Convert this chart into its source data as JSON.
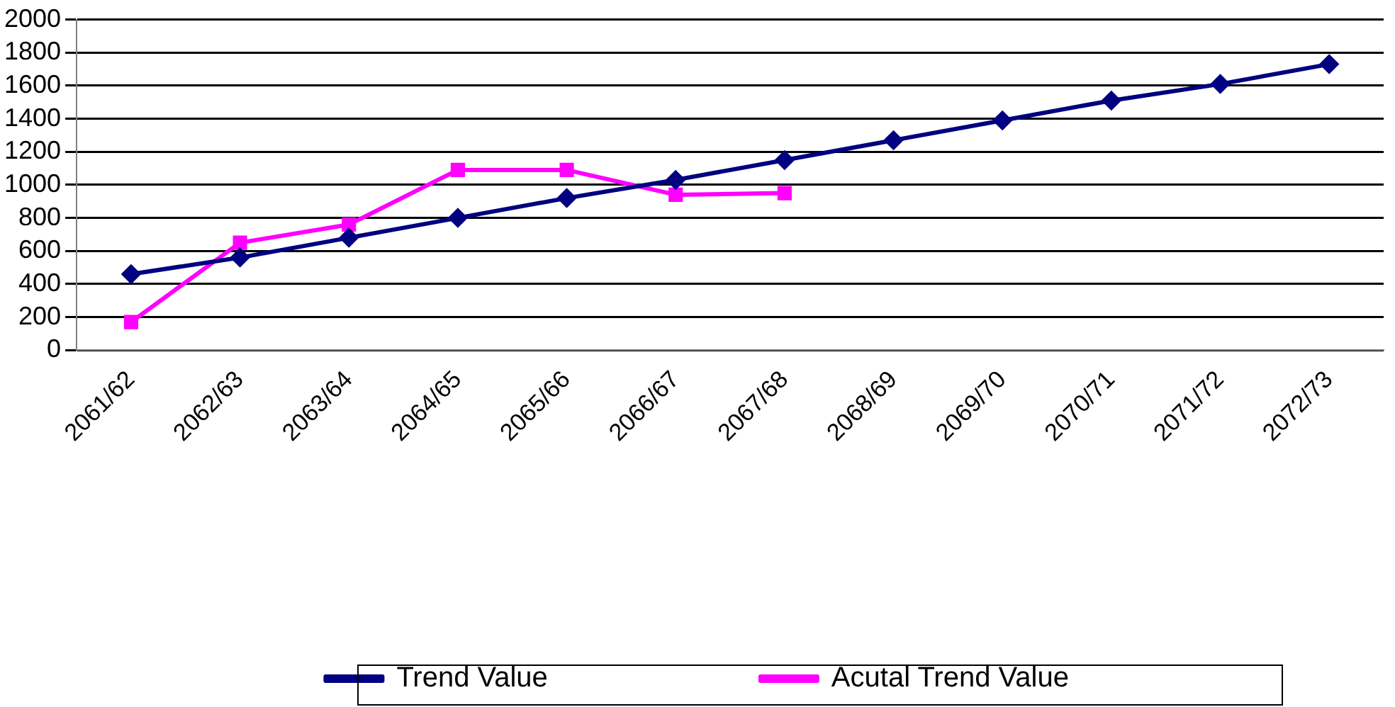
{
  "chart_data": {
    "type": "line",
    "categories": [
      "2061/62",
      "2062/63",
      "2063/64",
      "2064/65",
      "2065/66",
      "2066/67",
      "2067/68",
      "2068/69",
      "2069/70",
      "2070/71",
      "2071/72",
      "2072/73"
    ],
    "series": [
      {
        "name": "Trend Value",
        "color": "#000080",
        "marker": "diamond",
        "values": [
          460,
          560,
          680,
          800,
          920,
          1030,
          1150,
          1270,
          1390,
          1510,
          1610,
          1730
        ]
      },
      {
        "name": "Acutal Trend Value",
        "color": "#ff00ff",
        "marker": "square",
        "values": [
          170,
          650,
          760,
          1090,
          1090,
          940,
          950,
          null,
          null,
          null,
          null,
          null
        ]
      }
    ],
    "ylim": [
      0,
      2000
    ],
    "yticks": [
      0,
      200,
      400,
      600,
      800,
      1000,
      1200,
      1400,
      1600,
      1800,
      2000
    ],
    "grid": "y",
    "legend": "bottom",
    "line_style": "solid"
  }
}
